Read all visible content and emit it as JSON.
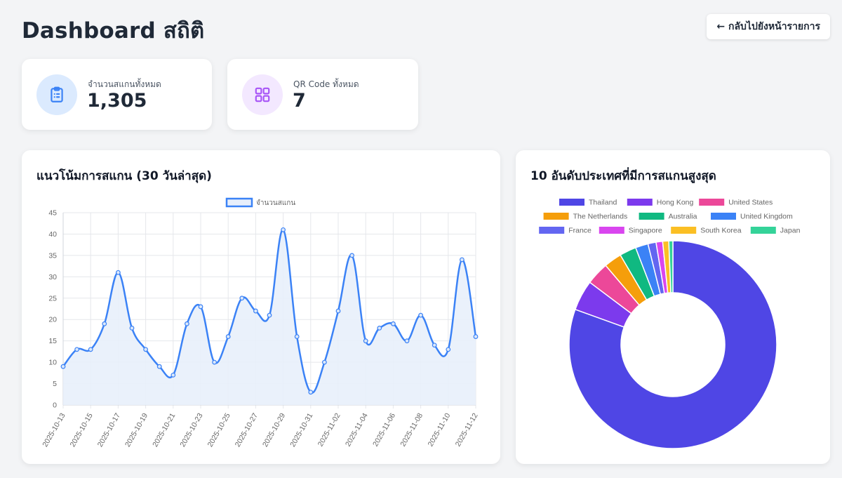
{
  "header": {
    "title": "Dashboard สถิติ",
    "back_label": "← กลับไปยังหน้ารายการ"
  },
  "stats": {
    "total_scans": {
      "label": "จำนวนสแกนทั้งหมด",
      "value": "1,305",
      "icon": "clipboard-icon",
      "icon_bg": "#dbeafe",
      "icon_color": "#3b82f6"
    },
    "total_qr": {
      "label": "QR Code ทั้งหมด",
      "value": "7",
      "icon": "grid-icon",
      "icon_bg": "#f3e8ff",
      "icon_color": "#a855f7"
    }
  },
  "trend": {
    "title": "แนวโน้มการสแกน (30 วันล่าสุด)",
    "chart_data": {
      "type": "line",
      "legend": "จำนวนสแกน",
      "legend_position": "top",
      "grid": true,
      "color": "#3b82f6",
      "fill": "#e8effb",
      "x": [
        "2025-10-13",
        "2025-10-14",
        "2025-10-15",
        "2025-10-16",
        "2025-10-17",
        "2025-10-18",
        "2025-10-19",
        "2025-10-20",
        "2025-10-21",
        "2025-10-22",
        "2025-10-23",
        "2025-10-24",
        "2025-10-25",
        "2025-10-26",
        "2025-10-27",
        "2025-10-28",
        "2025-10-29",
        "2025-10-30",
        "2025-10-31",
        "2025-11-01",
        "2025-11-02",
        "2025-11-03",
        "2025-11-04",
        "2025-11-05",
        "2025-11-06",
        "2025-11-07",
        "2025-11-08",
        "2025-11-09",
        "2025-11-10",
        "2025-11-11",
        "2025-11-12"
      ],
      "values": [
        9,
        13,
        13,
        19,
        31,
        18,
        13,
        9,
        7,
        19,
        23,
        10,
        16,
        25,
        22,
        21,
        41,
        16,
        3,
        10,
        22,
        35,
        15,
        18,
        19,
        15,
        21,
        14,
        13,
        34,
        16
      ],
      "x_tick_labels": [
        "2025-10-13",
        "2025-10-15",
        "2025-10-17",
        "2025-10-19",
        "2025-10-21",
        "2025-10-23",
        "2025-10-25",
        "2025-10-27",
        "2025-10-29",
        "2025-10-31",
        "2025-11-02",
        "2025-11-04",
        "2025-11-06",
        "2025-11-08",
        "2025-11-10",
        "2025-11-12"
      ],
      "y_ticks": [
        0,
        5,
        10,
        15,
        20,
        25,
        30,
        35,
        40,
        45
      ],
      "ylim": [
        0,
        45
      ]
    }
  },
  "countries": {
    "title": "10 อันดับประเทศที่มีการสแกนสูงสุด",
    "chart_data": {
      "type": "pie",
      "doughnut": true,
      "legend_position": "top",
      "labels": [
        "Thailand",
        "Hong Kong",
        "United States",
        "The Netherlands",
        "Australia",
        "United Kingdom",
        "France",
        "Singapore",
        "South Korea",
        "Japan"
      ],
      "values": [
        1020,
        60,
        45,
        35,
        33,
        25,
        16,
        13,
        12,
        8
      ],
      "colors": [
        "#4f46e5",
        "#7c3aed",
        "#ec4899",
        "#f59e0b",
        "#10b981",
        "#3b82f6",
        "#6366f1",
        "#d946ef",
        "#fbbf24",
        "#34d399"
      ]
    }
  }
}
